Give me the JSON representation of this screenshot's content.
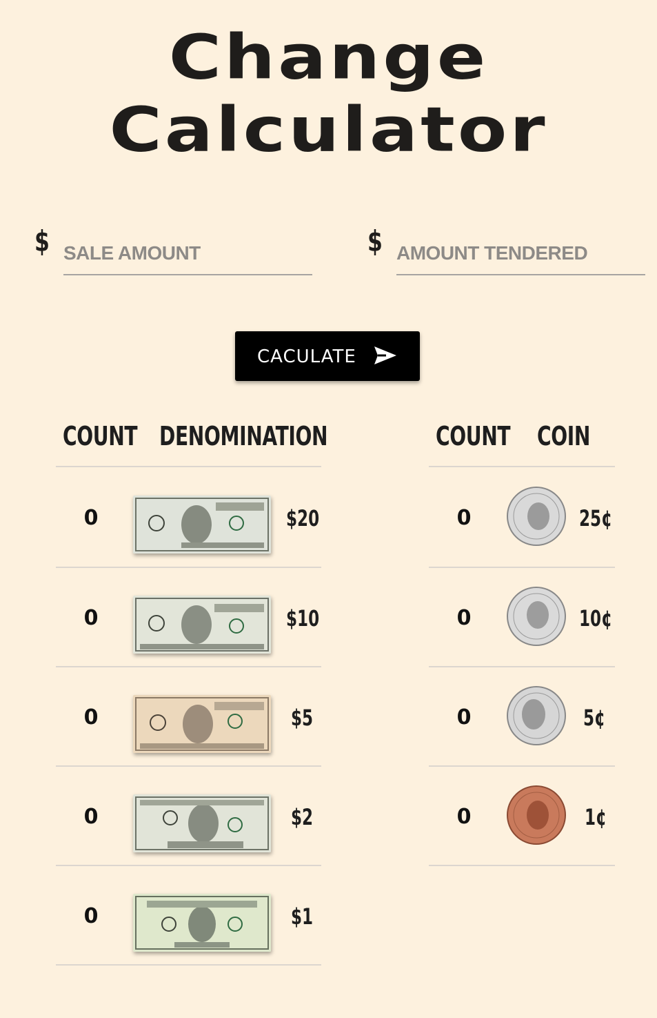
{
  "title": {
    "line1": "Change",
    "line2": "Calculator"
  },
  "inputs": {
    "currency_symbol": "$",
    "sale_placeholder": "SALE AMOUNT",
    "sale_value": "",
    "tendered_placeholder": "AMOUNT TENDERED",
    "tendered_value": ""
  },
  "calculate_button": {
    "label": "CACULATE",
    "icon": "send-icon"
  },
  "bills_table": {
    "headers": {
      "count": "COUNT",
      "item": "DENOMINATION"
    },
    "rows": [
      {
        "count": "0",
        "value": "$20",
        "color": "#dfe3da"
      },
      {
        "count": "0",
        "value": "$10",
        "color": "#e2e5d9"
      },
      {
        "count": "0",
        "value": "$5",
        "color": "#ecd8bc"
      },
      {
        "count": "0",
        "value": "$2",
        "color": "#e1e4d8"
      },
      {
        "count": "0",
        "value": "$1",
        "color": "#dfe8cc"
      }
    ]
  },
  "coins_table": {
    "headers": {
      "count": "COUNT",
      "item": "COIN"
    },
    "rows": [
      {
        "count": "0",
        "value": "25¢",
        "color": "#d9d9d9"
      },
      {
        "count": "0",
        "value": "10¢",
        "color": "#dadada"
      },
      {
        "count": "0",
        "value": "5¢",
        "color": "#d6d6d6"
      },
      {
        "count": "0",
        "value": "1¢",
        "color": "#c97a5c"
      }
    ]
  },
  "colors": {
    "background": "#fdf1de",
    "button": "#000000",
    "text": "#1e1e1e"
  }
}
